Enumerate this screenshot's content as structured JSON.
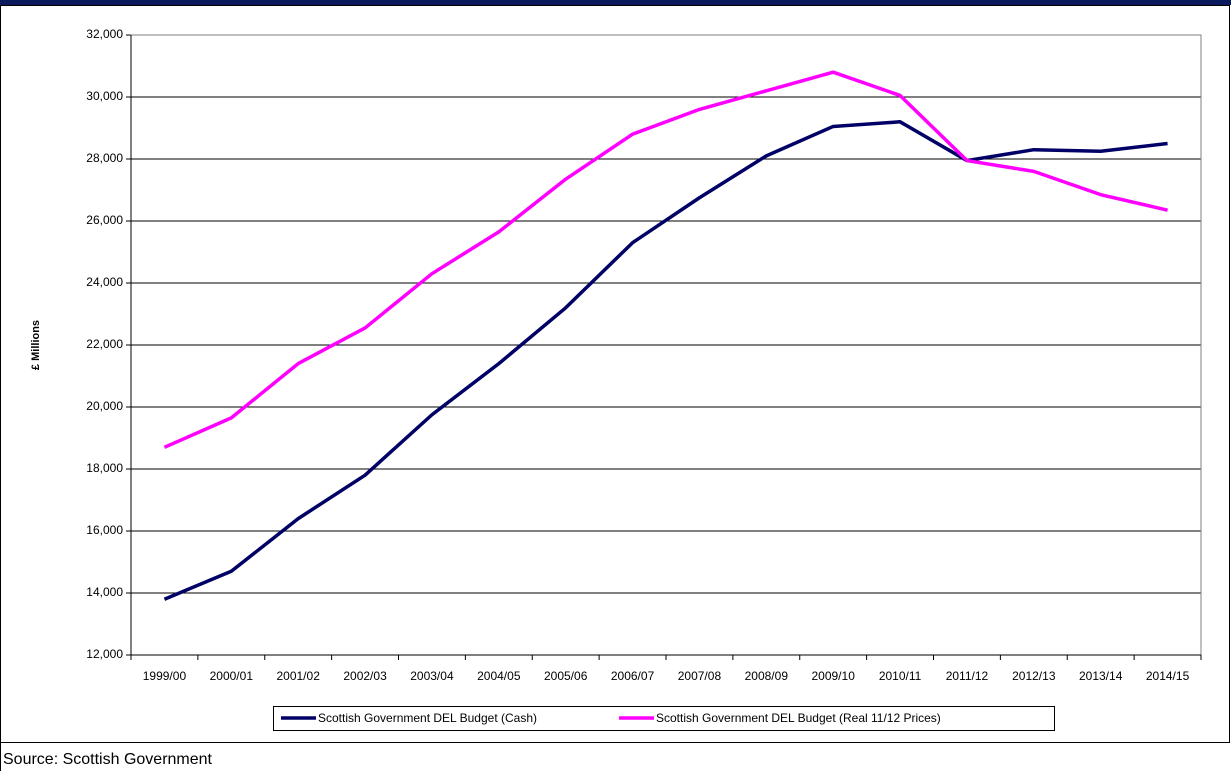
{
  "chart_data": {
    "type": "line",
    "y_label": "£ Millions",
    "source": "Source:  Scottish Government",
    "categories": [
      "1999/00",
      "2000/01",
      "2001/02",
      "2002/03",
      "2003/04",
      "2004/05",
      "2005/06",
      "2006/07",
      "2007/08",
      "2008/09",
      "2009/10",
      "2010/11",
      "2011/12",
      "2012/13",
      "2013/14",
      "2014/15"
    ],
    "series": [
      {
        "name": "Scottish Government DEL Budget (Cash)",
        "color": "#000066",
        "values": [
          13800,
          14700,
          16400,
          17800,
          19750,
          21400,
          23200,
          25300,
          26750,
          28100,
          29050,
          29200,
          27950,
          28300,
          28250,
          28500
        ]
      },
      {
        "name": "Scottish Government DEL Budget (Real 11/12 Prices)",
        "color": "#ff00ff",
        "values": [
          18700,
          19650,
          21400,
          22550,
          24300,
          25650,
          27350,
          28800,
          29600,
          30200,
          30800,
          30050,
          27950,
          27600,
          26850,
          26350
        ]
      }
    ],
    "ylim": [
      12000,
      32000
    ],
    "yticks": [
      {
        "value": 12000,
        "label": "12,000"
      },
      {
        "value": 14000,
        "label": "14,000"
      },
      {
        "value": 16000,
        "label": "16,000"
      },
      {
        "value": 18000,
        "label": "18,000"
      },
      {
        "value": 20000,
        "label": "20,000"
      },
      {
        "value": 22000,
        "label": "22,000"
      },
      {
        "value": 24000,
        "label": "24,000"
      },
      {
        "value": 26000,
        "label": "26,000"
      },
      {
        "value": 28000,
        "label": "28,000"
      },
      {
        "value": 30000,
        "label": "30,000"
      },
      {
        "value": 32000,
        "label": "32,000"
      }
    ],
    "grid": true
  }
}
